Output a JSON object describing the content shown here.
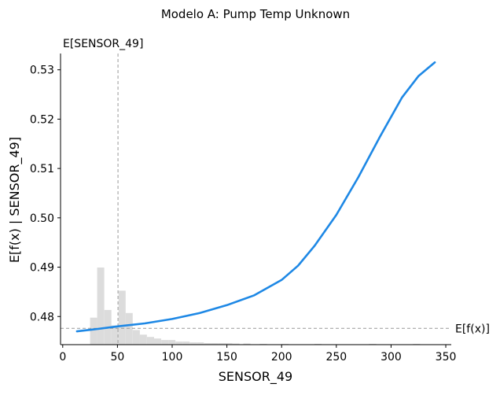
{
  "chart_data": {
    "type": "line",
    "title": "Modelo A: Pump Temp Unknown",
    "xlabel": "SENSOR_49",
    "ylabel": "E[f(x) | SENSOR_49]",
    "xlim": [
      -2,
      355
    ],
    "ylim": [
      0.4743,
      0.5333
    ],
    "xticks": [
      0,
      50,
      100,
      150,
      200,
      250,
      300,
      350
    ],
    "xtick_labels": [
      "0",
      "50",
      "100",
      "150",
      "200",
      "250",
      "300",
      "350"
    ],
    "yticks": [
      0.48,
      0.49,
      0.5,
      0.51,
      0.52,
      0.53
    ],
    "ytick_labels": [
      "0.48",
      "0.49",
      "0.50",
      "0.51",
      "0.52",
      "0.53"
    ],
    "grid": false,
    "line_color": "#1E88E5",
    "hist_color": "#DCDCDC",
    "ref_line_color": "#999999",
    "series": [
      {
        "x": [
          13,
          25,
          50,
          75,
          100,
          125,
          150,
          175,
          200,
          215,
          230,
          250,
          270,
          290,
          310,
          325,
          340
        ],
        "values": [
          0.477,
          0.4773,
          0.478,
          0.4786,
          0.4795,
          0.4807,
          0.4823,
          0.4843,
          0.4874,
          0.4903,
          0.4943,
          0.5006,
          0.5082,
          0.5165,
          0.5244,
          0.5287,
          0.5315
        ]
      }
    ],
    "histogram": {
      "bin_width": 6.5,
      "bins_x": [
        25,
        31.5,
        38,
        44.5,
        51,
        57.5,
        64,
        70.5,
        77,
        83.5,
        90,
        96.5,
        103,
        109.5,
        116,
        122.5,
        129,
        135.5,
        142,
        148.5,
        155,
        165,
        180,
        200,
        230,
        280,
        320
      ],
      "relative_heights": [
        0.35,
        1.0,
        0.45,
        0.25,
        0.7,
        0.41,
        0.19,
        0.13,
        0.1,
        0.08,
        0.06,
        0.06,
        0.04,
        0.04,
        0.03,
        0.03,
        0.02,
        0.02,
        0.02,
        0.02,
        0.015,
        0.015,
        0.01,
        0.01,
        0.01,
        0.01,
        0.01
      ]
    },
    "reference_lines": {
      "expected_x": 50.5,
      "expected_x_label": "E[SENSOR_49]",
      "expected_y": 0.4776,
      "expected_y_label": "E[f(x)]"
    }
  }
}
